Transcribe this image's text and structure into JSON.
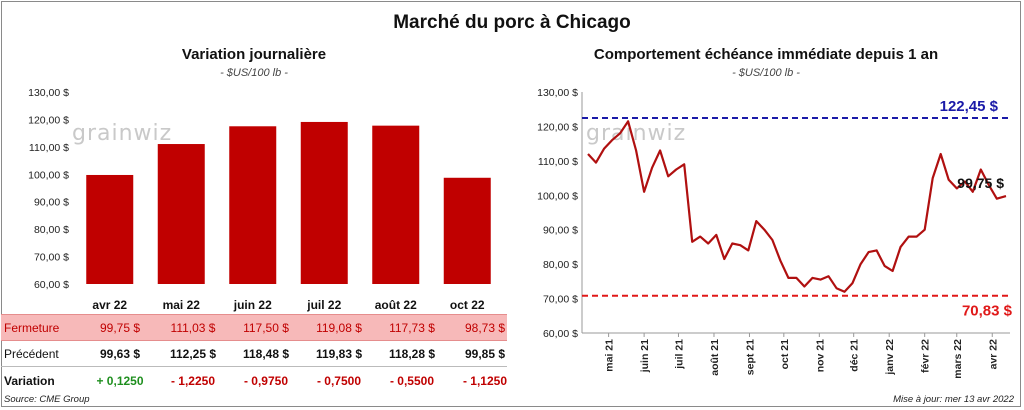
{
  "title": "Marché du porc à Chicago",
  "watermark": "grainwiz",
  "colors": {
    "bar": "#c00000",
    "line": "#b01010",
    "high": "#1a1aa8",
    "low": "#e01818"
  },
  "chart_data": [
    {
      "type": "bar",
      "title": "Variation  journalière",
      "subtitle": "- $US/100 lb -",
      "categories": [
        "avr 22",
        "mai 22",
        "juin 22",
        "juil 22",
        "août 22",
        "oct 22"
      ],
      "values": [
        99.75,
        111.03,
        117.5,
        119.08,
        117.73,
        98.73
      ],
      "ylim": [
        60,
        130
      ],
      "yticks": [
        "60,00 $",
        "70,00 $",
        "80,00 $",
        "90,00 $",
        "100,00 $",
        "110,00 $",
        "120,00 $",
        "130,00 $"
      ]
    },
    {
      "type": "line",
      "title": "Comportement  échéance immédiate depuis 1 an",
      "subtitle": "- $US/100 lb -",
      "ylim": [
        60,
        130
      ],
      "yticks": [
        "60,00 $",
        "70,00 $",
        "80,00 $",
        "90,00 $",
        "100,00 $",
        "110,00 $",
        "120,00 $",
        "130,00 $"
      ],
      "xticks": [
        "mai 21",
        "juin 21",
        "juil 21",
        "août 21",
        "sept 21",
        "oct 21",
        "nov 21",
        "déc 21",
        "janv 22",
        "févr 22",
        "mars 22",
        "avr 22"
      ],
      "x": [
        "2021-04-13",
        "2021-04-20",
        "2021-04-27",
        "2021-05-04",
        "2021-05-11",
        "2021-05-18",
        "2021-05-25",
        "2021-06-01",
        "2021-06-08",
        "2021-06-15",
        "2021-06-22",
        "2021-06-29",
        "2021-07-06",
        "2021-07-13",
        "2021-07-20",
        "2021-07-27",
        "2021-08-03",
        "2021-08-10",
        "2021-08-17",
        "2021-08-24",
        "2021-08-31",
        "2021-09-07",
        "2021-09-14",
        "2021-09-21",
        "2021-09-28",
        "2021-10-05",
        "2021-10-12",
        "2021-10-19",
        "2021-10-26",
        "2021-11-02",
        "2021-11-09",
        "2021-11-16",
        "2021-11-23",
        "2021-11-30",
        "2021-12-07",
        "2021-12-14",
        "2021-12-21",
        "2021-12-28",
        "2022-01-04",
        "2022-01-11",
        "2022-01-18",
        "2022-01-25",
        "2022-02-01",
        "2022-02-08",
        "2022-02-15",
        "2022-02-22",
        "2022-03-01",
        "2022-03-08",
        "2022-03-15",
        "2022-03-22",
        "2022-03-29",
        "2022-04-05",
        "2022-04-13"
      ],
      "y": [
        112.0,
        109.5,
        113.5,
        116.0,
        118.0,
        121.5,
        113.0,
        101.0,
        108.0,
        113.0,
        105.5,
        107.5,
        109.0,
        86.5,
        88.0,
        86.0,
        88.5,
        81.5,
        86.0,
        85.5,
        84.0,
        92.5,
        90.0,
        87.0,
        81.0,
        76.0,
        76.0,
        73.5,
        76.0,
        75.5,
        76.5,
        73.0,
        72.0,
        74.5,
        80.0,
        83.5,
        84.0,
        79.5,
        78.0,
        85.0,
        88.0,
        88.0,
        90.0,
        105.0,
        112.0,
        104.5,
        102.0,
        104.0,
        101.0,
        107.5,
        103.0,
        99.0,
        99.75
      ]
    }
  ],
  "annotations": {
    "high": "122,45 $",
    "low": "70,83 $",
    "last": "99,75 $",
    "high_value": 122.45,
    "low_value": 70.83,
    "last_value": 99.75
  },
  "table": {
    "rows": [
      {
        "label": "Fermeture",
        "cells": [
          "99,75  $",
          "111,03  $",
          "117,50  $",
          "119,08  $",
          "117,73  $",
          "98,73  $"
        ]
      },
      {
        "label": "Précédent",
        "cells": [
          "99,63  $",
          "112,25  $",
          "118,48  $",
          "119,83  $",
          "118,28  $",
          "99,85  $"
        ]
      },
      {
        "label": "Variation",
        "cells": [
          "+ 0,1250",
          "- 1,2250",
          "- 0,9750",
          "- 0,7500",
          "- 0,5500",
          "- 1,1250"
        ]
      }
    ]
  },
  "footer": {
    "source": "Source: CME Group",
    "updated": "Mise à jour: mer 13 avr 2022"
  }
}
